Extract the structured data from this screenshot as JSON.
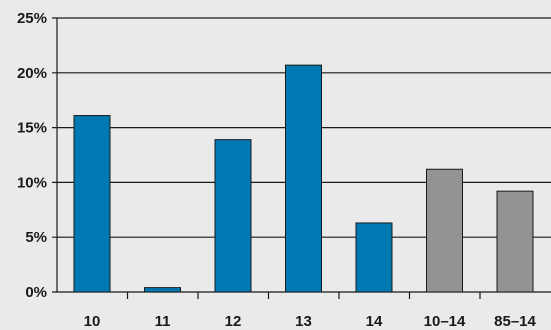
{
  "chart_data": {
    "type": "bar",
    "title": "",
    "xlabel": "",
    "ylabel": "",
    "categories": [
      "10",
      "11",
      "12",
      "13",
      "14",
      "10–14",
      "85–14"
    ],
    "values": [
      16.1,
      0.4,
      13.9,
      20.7,
      6.3,
      11.2,
      9.2
    ],
    "bar_colors": [
      "#0079b3",
      "#0079b3",
      "#0079b3",
      "#0079b3",
      "#0079b3",
      "#939396",
      "#939396"
    ],
    "y_ticks": [
      0,
      5,
      10,
      15,
      20,
      25
    ],
    "y_tick_labels": [
      "0%",
      "5%",
      "10%",
      "15%",
      "20%",
      "25%"
    ],
    "ylim": [
      0,
      25
    ],
    "grid": true,
    "legend": "none",
    "colors": {
      "background": "#eaeaeb",
      "grid": "#1a1a1a",
      "bar_edge": "#1a1a1a"
    }
  }
}
